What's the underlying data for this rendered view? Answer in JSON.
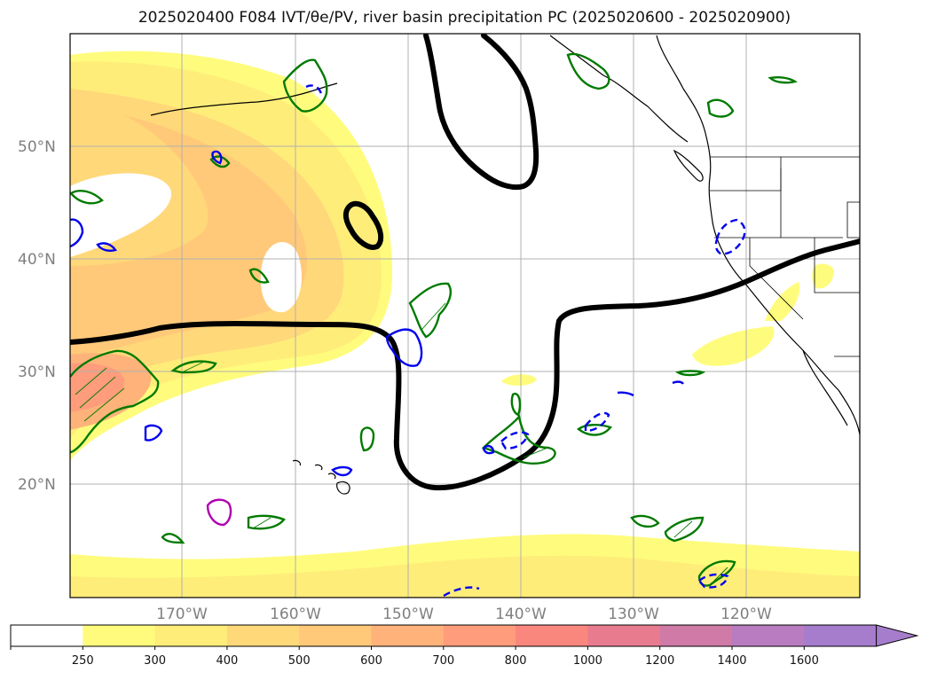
{
  "title": "2025020400 F084 IVT/θe/PV, river basin precipitation PC (2025020600 - 2025020900)",
  "map": {
    "lat_labels": [
      "50°N",
      "40°N",
      "30°N",
      "20°N"
    ],
    "lon_labels": [
      "170°W",
      "160°W",
      "150°W",
      "140°W",
      "130°W",
      "120°W"
    ]
  },
  "colorbar": {
    "levels": [
      "250",
      "300",
      "400",
      "500",
      "600",
      "700",
      "800",
      "1000",
      "1200",
      "1400",
      "1600"
    ],
    "colors": [
      "#ffffff",
      "#fffc7d",
      "#ffed7a",
      "#ffd879",
      "#ffc979",
      "#ffb27a",
      "#ff9c7b",
      "#fa877e",
      "#e87c8e",
      "#d07ba7",
      "#b97cc0",
      "#a67dcc"
    ],
    "extend": "max"
  },
  "colors": {
    "contour_black": "#000000",
    "contour_green": "#007a00",
    "contour_blue": "#0000ee",
    "contour_magenta": "#b000b0",
    "grid": "#b0b0b0"
  }
}
